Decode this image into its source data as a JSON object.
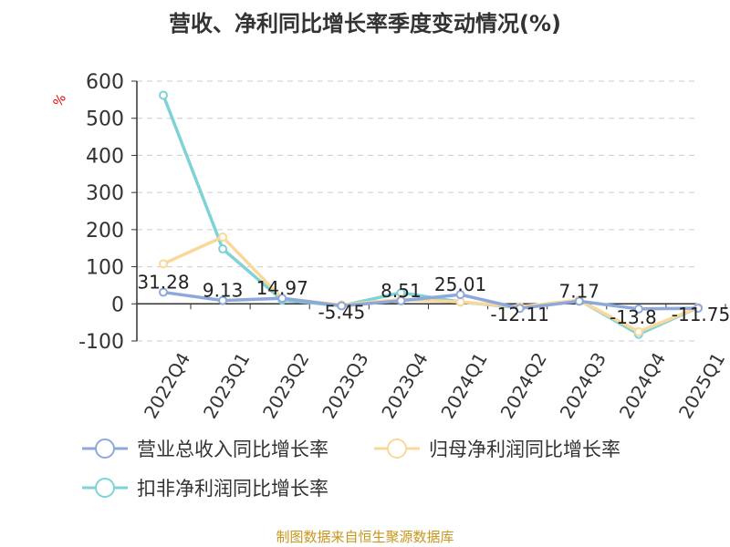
{
  "chart_data": {
    "type": "line",
    "title": "营收、净利同比增长率季度变动情况(%)",
    "ylabel": "%",
    "ylim": [
      -100,
      600
    ],
    "yticks": [
      -100,
      0,
      100,
      200,
      300,
      400,
      500,
      600
    ],
    "grid": true,
    "legend_placement": "bottom",
    "categories": [
      "2022Q4",
      "2023Q1",
      "2023Q2",
      "2023Q3",
      "2023Q4",
      "2024Q1",
      "2024Q2",
      "2024Q3",
      "2024Q4",
      "2025Q1"
    ],
    "series": [
      {
        "name": "营业总收入同比增长率",
        "color": "#8fa8dc",
        "values": [
          31.28,
          9.13,
          14.97,
          -5.45,
          8.51,
          25.01,
          -12.11,
          7.17,
          -13.8,
          -11.75
        ],
        "labels": [
          "31.28",
          "9.13",
          "14.97",
          "-5.45",
          "8.51",
          "25.01",
          "-12.11",
          "7.17",
          "-13.8",
          "-11.75"
        ]
      },
      {
        "name": "归母净利润同比增长率",
        "color": "#fbd89a",
        "values": [
          108,
          180,
          15,
          -3,
          12,
          5,
          -8,
          10,
          -75,
          -10
        ]
      },
      {
        "name": "扣非净利润同比增长率",
        "color": "#7fd3d6",
        "values": [
          562,
          148,
          10,
          -5,
          30,
          5,
          -10,
          10,
          -82,
          -10
        ]
      }
    ]
  },
  "source": "制图数据来自恒生聚源数据库"
}
